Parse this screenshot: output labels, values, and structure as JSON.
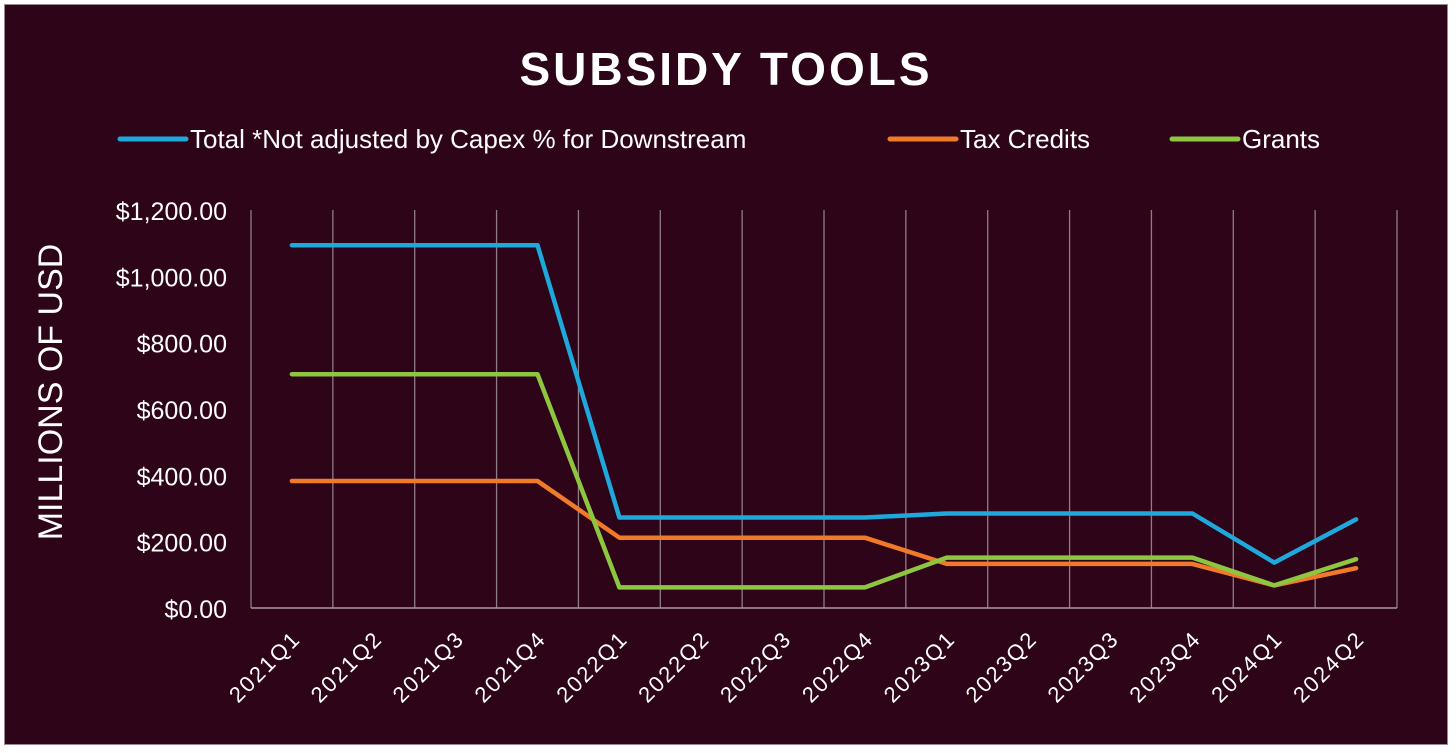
{
  "chart_data": {
    "type": "line",
    "title": "SUBSIDY TOOLS",
    "ylabel": "MILLIONS OF USD",
    "xlabel": "",
    "categories": [
      "2021Q1",
      "2021Q2",
      "2021Q3",
      "2021Q4",
      "2022Q1",
      "2022Q2",
      "2022Q3",
      "2022Q4",
      "2023Q1",
      "2023Q2",
      "2023Q3",
      "2023Q4",
      "2024Q1",
      "2024Q2"
    ],
    "yticks": [
      "$0.00",
      "$200.00",
      "$400.00",
      "$600.00",
      "$800.00",
      "$1,000.00",
      "$1,200.00"
    ],
    "ylim": [
      0,
      1200
    ],
    "grid": "vertical",
    "legend_position": "top",
    "series": [
      {
        "name": "Total *Not adjusted by Capex % for Downstream",
        "color": "#1ea8dc",
        "values": [
          1094,
          1094,
          1094,
          1094,
          273,
          273,
          273,
          273,
          285,
          285,
          285,
          285,
          137,
          267
        ]
      },
      {
        "name": "Tax Credits",
        "color": "#f07a2a",
        "values": [
          383,
          383,
          383,
          383,
          212,
          212,
          212,
          212,
          133,
          133,
          133,
          133,
          68,
          120
        ]
      },
      {
        "name": "Grants",
        "color": "#8dc63f",
        "values": [
          705,
          705,
          705,
          705,
          62,
          62,
          62,
          62,
          152,
          152,
          152,
          152,
          68,
          147
        ]
      }
    ]
  }
}
